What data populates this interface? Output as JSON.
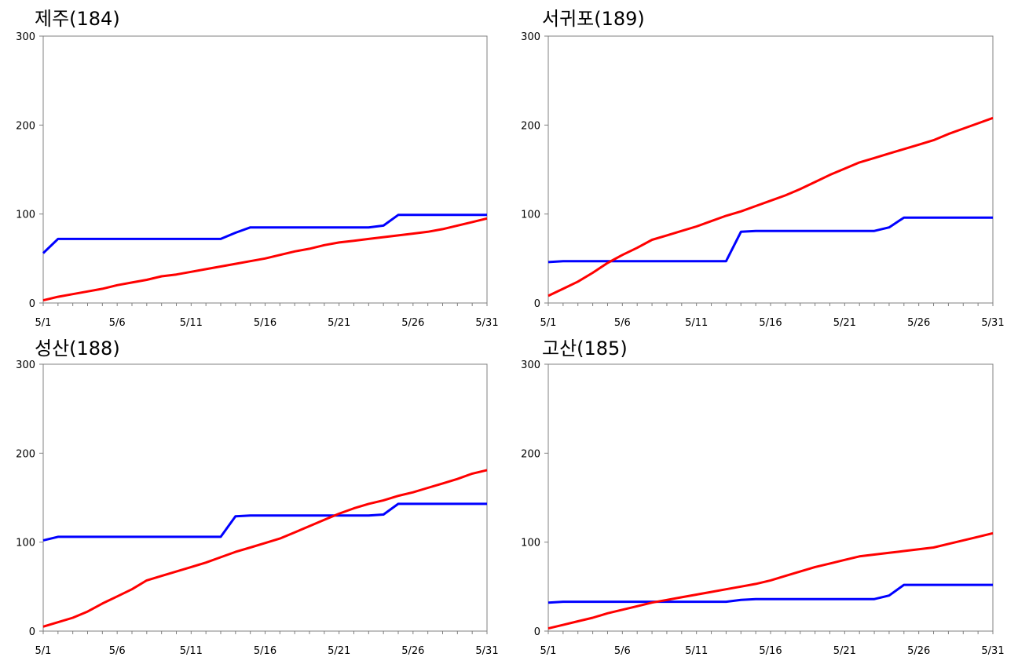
{
  "chart_data": [
    {
      "type": "line",
      "title": "제주(184)",
      "x": [
        1,
        2,
        3,
        4,
        5,
        6,
        7,
        8,
        9,
        10,
        11,
        12,
        13,
        14,
        15,
        16,
        17,
        18,
        19,
        20,
        21,
        22,
        23,
        24,
        25,
        26,
        27,
        28,
        29,
        30,
        31
      ],
      "xticks": [
        1,
        6,
        11,
        16,
        21,
        26,
        31
      ],
      "xtick_labels": [
        "5/1",
        "5/6",
        "5/11",
        "5/16",
        "5/21",
        "5/26",
        "5/31"
      ],
      "yticks": [
        0,
        100,
        200,
        300
      ],
      "ytick_labels": [
        "0",
        "100",
        "200",
        "300"
      ],
      "xlim": [
        1,
        31
      ],
      "ylim": [
        0,
        300
      ],
      "series": [
        {
          "color": "#0000ff",
          "values": [
            56,
            72,
            72,
            72,
            72,
            72,
            72,
            72,
            72,
            72,
            72,
            72,
            72,
            79,
            85,
            85,
            85,
            85,
            85,
            85,
            85,
            85,
            85,
            87,
            99,
            99,
            99,
            99,
            99,
            99,
            99
          ]
        },
        {
          "color": "#ff0000",
          "values": [
            3,
            7,
            10,
            13,
            16,
            20,
            23,
            26,
            30,
            32,
            35,
            38,
            41,
            44,
            47,
            50,
            54,
            58,
            61,
            65,
            68,
            70,
            72,
            74,
            76,
            78,
            80,
            83,
            87,
            91,
            95
          ]
        }
      ]
    },
    {
      "type": "line",
      "title": "서귀포(189)",
      "x": [
        1,
        2,
        3,
        4,
        5,
        6,
        7,
        8,
        9,
        10,
        11,
        12,
        13,
        14,
        15,
        16,
        17,
        18,
        19,
        20,
        21,
        22,
        23,
        24,
        25,
        26,
        27,
        28,
        29,
        30,
        31
      ],
      "xticks": [
        1,
        6,
        11,
        16,
        21,
        26,
        31
      ],
      "xtick_labels": [
        "5/1",
        "5/6",
        "5/11",
        "5/16",
        "5/21",
        "5/26",
        "5/31"
      ],
      "yticks": [
        0,
        100,
        200,
        300
      ],
      "ytick_labels": [
        "0",
        "100",
        "200",
        "300"
      ],
      "xlim": [
        1,
        31
      ],
      "ylim": [
        0,
        300
      ],
      "series": [
        {
          "color": "#0000ff",
          "values": [
            46,
            47,
            47,
            47,
            47,
            47,
            47,
            47,
            47,
            47,
            47,
            47,
            47,
            80,
            81,
            81,
            81,
            81,
            81,
            81,
            81,
            81,
            81,
            85,
            96,
            96,
            96,
            96,
            96,
            96,
            96
          ]
        },
        {
          "color": "#ff0000",
          "values": [
            8,
            16,
            24,
            34,
            45,
            54,
            62,
            71,
            76,
            81,
            86,
            92,
            98,
            103,
            109,
            115,
            121,
            128,
            136,
            144,
            151,
            158,
            163,
            168,
            173,
            178,
            183,
            190,
            196,
            202,
            208
          ]
        }
      ]
    },
    {
      "type": "line",
      "title": "성산(188)",
      "x": [
        1,
        2,
        3,
        4,
        5,
        6,
        7,
        8,
        9,
        10,
        11,
        12,
        13,
        14,
        15,
        16,
        17,
        18,
        19,
        20,
        21,
        22,
        23,
        24,
        25,
        26,
        27,
        28,
        29,
        30,
        31
      ],
      "xticks": [
        1,
        6,
        11,
        16,
        21,
        26,
        31
      ],
      "xtick_labels": [
        "5/1",
        "5/6",
        "5/11",
        "5/16",
        "5/21",
        "5/26",
        "5/31"
      ],
      "yticks": [
        0,
        100,
        200,
        300
      ],
      "ytick_labels": [
        "0",
        "100",
        "200",
        "300"
      ],
      "xlim": [
        1,
        31
      ],
      "ylim": [
        0,
        300
      ],
      "series": [
        {
          "color": "#0000ff",
          "values": [
            102,
            106,
            106,
            106,
            106,
            106,
            106,
            106,
            106,
            106,
            106,
            106,
            106,
            129,
            130,
            130,
            130,
            130,
            130,
            130,
            130,
            130,
            130,
            131,
            143,
            143,
            143,
            143,
            143,
            143,
            143
          ]
        },
        {
          "color": "#ff0000",
          "values": [
            5,
            10,
            15,
            22,
            31,
            39,
            47,
            57,
            62,
            67,
            72,
            77,
            83,
            89,
            94,
            99,
            104,
            111,
            118,
            125,
            132,
            138,
            143,
            147,
            152,
            156,
            161,
            166,
            171,
            177,
            181
          ]
        }
      ]
    },
    {
      "type": "line",
      "title": "고산(185)",
      "x": [
        1,
        2,
        3,
        4,
        5,
        6,
        7,
        8,
        9,
        10,
        11,
        12,
        13,
        14,
        15,
        16,
        17,
        18,
        19,
        20,
        21,
        22,
        23,
        24,
        25,
        26,
        27,
        28,
        29,
        30,
        31
      ],
      "xticks": [
        1,
        6,
        11,
        16,
        21,
        26,
        31
      ],
      "xtick_labels": [
        "5/1",
        "5/6",
        "5/11",
        "5/16",
        "5/21",
        "5/26",
        "5/31"
      ],
      "yticks": [
        0,
        100,
        200,
        300
      ],
      "ytick_labels": [
        "0",
        "100",
        "200",
        "300"
      ],
      "xlim": [
        1,
        31
      ],
      "ylim": [
        0,
        300
      ],
      "series": [
        {
          "color": "#0000ff",
          "values": [
            32,
            33,
            33,
            33,
            33,
            33,
            33,
            33,
            33,
            33,
            33,
            33,
            33,
            35,
            36,
            36,
            36,
            36,
            36,
            36,
            36,
            36,
            36,
            40,
            52,
            52,
            52,
            52,
            52,
            52,
            52
          ]
        },
        {
          "color": "#ff0000",
          "values": [
            3,
            7,
            11,
            15,
            20,
            24,
            28,
            32,
            35,
            38,
            41,
            44,
            47,
            50,
            53,
            57,
            62,
            67,
            72,
            76,
            80,
            84,
            86,
            88,
            90,
            92,
            94,
            98,
            102,
            106,
            110
          ]
        }
      ]
    }
  ]
}
